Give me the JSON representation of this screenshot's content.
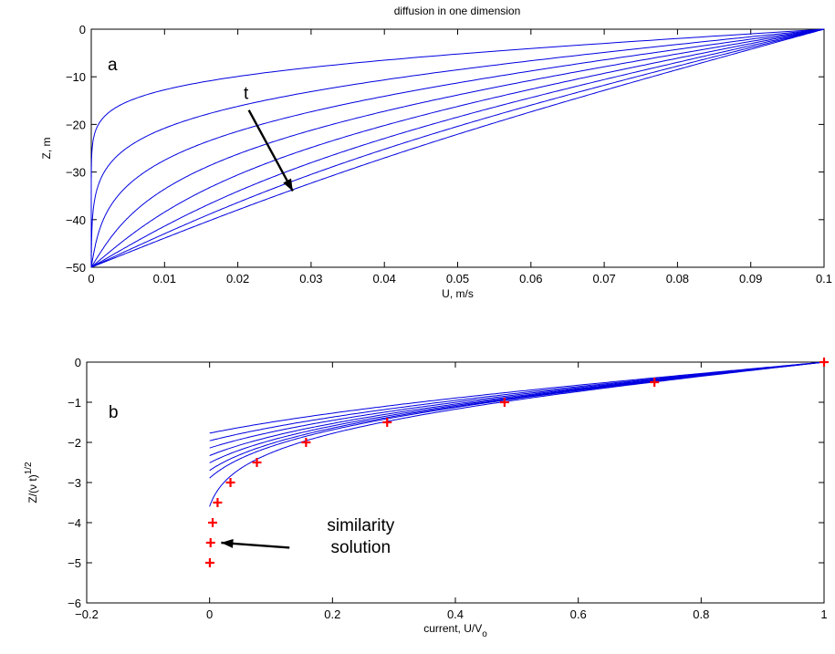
{
  "chart_data": [
    {
      "type": "line",
      "title": "diffusion in one dimension",
      "panel_label": "a",
      "xlabel": "U, m/s",
      "ylabel": "Z, m",
      "xlim": [
        0,
        0.1
      ],
      "ylim": [
        -50,
        0
      ],
      "xticks": [
        "0",
        "0.01",
        "0.02",
        "0.03",
        "0.04",
        "0.05",
        "0.06",
        "0.07",
        "0.08",
        "0.09",
        "0.1"
      ],
      "yticks": [
        "0",
        "−10",
        "−20",
        "−30",
        "−40",
        "−50"
      ],
      "series_color": "#0000e0",
      "model": {
        "U0": 0.1,
        "depth": 50,
        "kt_values": [
          30,
          80,
          140,
          210,
          290,
          380,
          480,
          600
        ]
      },
      "annotation": {
        "text": "t",
        "from": [
          0.0215,
          -17
        ],
        "to": [
          0.0275,
          -34
        ]
      }
    },
    {
      "type": "line",
      "panel_label": "b",
      "xlabel": "current, U/V",
      "xlabel_sub": "o",
      "ylabel": "Z/(ν t)",
      "ylabel_sup": "1/2",
      "xlim": [
        -0.2,
        1
      ],
      "ylim": [
        -6,
        0
      ],
      "xticks": [
        "−0.2",
        "0",
        "0.2",
        "0.4",
        "0.6",
        "0.8",
        "1"
      ],
      "yticks": [
        "0",
        "−1",
        "−2",
        "−3",
        "−4",
        "−5",
        "−6"
      ],
      "series_color": "#0000e0",
      "marker_color": "#ff0000",
      "eta_max": [
        1.77,
        1.96,
        2.14,
        2.33,
        2.51,
        2.7,
        2.89,
        3.6
      ],
      "similarity_points": {
        "x": [
          1,
          0.724,
          0.48,
          0.289,
          0.157,
          0.077,
          0.034,
          0.013,
          0.005,
          0.0016,
          0.0004
        ],
        "y": [
          0,
          -0.5,
          -1,
          -1.5,
          -2,
          -2.5,
          -3,
          -3.5,
          -4,
          -4.5,
          -5
        ]
      },
      "annotation": {
        "text_lines": [
          "similarity",
          "solution"
        ],
        "from": [
          0.13,
          -4.6
        ],
        "to": [
          0.01,
          -4.5
        ]
      }
    }
  ]
}
